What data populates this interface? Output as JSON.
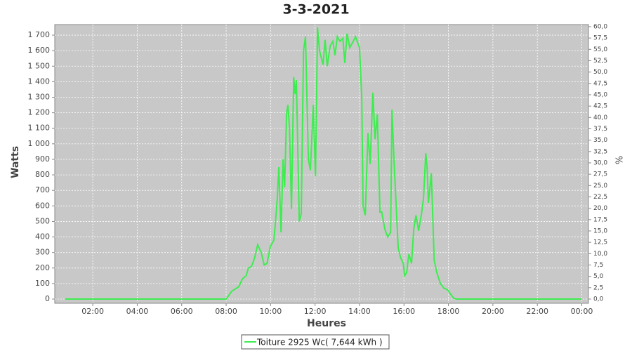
{
  "chart_data": {
    "type": "line",
    "title": "3-3-2021",
    "x_label": "Heures",
    "y_label": "Watts",
    "y2_label": "%",
    "x": [
      0.75,
      8.0,
      8.1,
      8.25,
      8.57,
      8.73,
      8.9,
      9.0,
      9.14,
      9.27,
      9.42,
      9.58,
      9.71,
      9.84,
      9.99,
      10.15,
      10.25,
      10.3,
      10.37,
      10.47,
      10.56,
      10.63,
      10.72,
      10.78,
      10.85,
      10.94,
      11.04,
      11.1,
      11.16,
      11.29,
      11.38,
      11.48,
      11.57,
      11.7,
      11.79,
      11.92,
      12.02,
      12.11,
      12.2,
      12.36,
      12.45,
      12.55,
      12.68,
      12.8,
      12.9,
      13.0,
      13.12,
      13.25,
      13.34,
      13.44,
      13.56,
      13.72,
      13.82,
      14.0,
      14.1,
      14.16,
      14.26,
      14.38,
      14.48,
      14.6,
      14.7,
      14.8,
      14.92,
      15.0,
      15.14,
      15.27,
      15.4,
      15.46,
      15.55,
      15.65,
      15.74,
      15.84,
      15.97,
      16.03,
      16.12,
      16.22,
      16.34,
      16.44,
      16.54,
      16.66,
      16.79,
      16.88,
      16.98,
      17.04,
      17.1,
      17.23,
      17.36,
      17.48,
      17.64,
      17.8,
      17.96,
      18.11,
      18.24,
      18.37,
      24.0
    ],
    "series": [
      {
        "name": "Toiture 2925 Wc( 7,644 kWh )",
        "color": "#3ded4f",
        "values": [
          0,
          0,
          20,
          50,
          80,
          130,
          150,
          200,
          210,
          260,
          350,
          300,
          220,
          230,
          340,
          380,
          550,
          650,
          850,
          430,
          900,
          720,
          1200,
          1250,
          1100,
          580,
          1430,
          1320,
          1410,
          500,
          550,
          1600,
          1690,
          900,
          830,
          1250,
          790,
          1750,
          1600,
          1510,
          1670,
          1500,
          1630,
          1660,
          1570,
          1690,
          1660,
          1680,
          1520,
          1710,
          1620,
          1660,
          1690,
          1620,
          1300,
          600,
          540,
          1070,
          870,
          1330,
          1030,
          1190,
          560,
          560,
          450,
          400,
          430,
          1220,
          900,
          600,
          330,
          270,
          230,
          150,
          170,
          290,
          230,
          450,
          540,
          440,
          550,
          650,
          940,
          850,
          620,
          810,
          250,
          170,
          100,
          70,
          60,
          30,
          5,
          0,
          0
        ]
      }
    ],
    "xlim": [
      0.29,
      24.3
    ],
    "xticks": [
      {
        "value": 2,
        "label": "02:00"
      },
      {
        "value": 4,
        "label": "04:00"
      },
      {
        "value": 6,
        "label": "06:00"
      },
      {
        "value": 8,
        "label": "08:00"
      },
      {
        "value": 10,
        "label": "10:00"
      },
      {
        "value": 12,
        "label": "12:00"
      },
      {
        "value": 14,
        "label": "14:00"
      },
      {
        "value": 16,
        "label": "16:00"
      },
      {
        "value": 18,
        "label": "18:00"
      },
      {
        "value": 20,
        "label": "20:00"
      },
      {
        "value": 22,
        "label": "22:00"
      },
      {
        "value": 24,
        "label": "00:00"
      }
    ],
    "ylim": [
      -27,
      1768
    ],
    "yticks": [
      0,
      100,
      200,
      300,
      400,
      500,
      600,
      700,
      800,
      900,
      {
        "value": 1000,
        "label": "1 000"
      },
      {
        "value": 1100,
        "label": "1 100"
      },
      {
        "value": 1200,
        "label": "1 200"
      },
      {
        "value": 1300,
        "label": "1 300"
      },
      {
        "value": 1400,
        "label": "1 400"
      },
      {
        "value": 1500,
        "label": "1 500"
      },
      {
        "value": 1600,
        "label": "1 600"
      },
      {
        "value": 1700,
        "label": "1 700"
      }
    ],
    "y2lim": [
      -0.93,
      60.46
    ],
    "y2ticks": [
      {
        "value": 0,
        "label": "0,0"
      },
      {
        "value": 2.5,
        "label": "2,5"
      },
      {
        "value": 5,
        "label": "5,0"
      },
      {
        "value": 7.5,
        "label": "7,5"
      },
      {
        "value": 10,
        "label": "10,0"
      },
      {
        "value": 12.5,
        "label": "12,5"
      },
      {
        "value": 15,
        "label": "15,0"
      },
      {
        "value": 17.5,
        "label": "17,5"
      },
      {
        "value": 20,
        "label": "20,0"
      },
      {
        "value": 22.5,
        "label": "22,5"
      },
      {
        "value": 25,
        "label": "25,0"
      },
      {
        "value": 27.5,
        "label": "27,5"
      },
      {
        "value": 30,
        "label": "30,0"
      },
      {
        "value": 32.5,
        "label": "32,5"
      },
      {
        "value": 35,
        "label": "35,0"
      },
      {
        "value": 37.5,
        "label": "37,5"
      },
      {
        "value": 40,
        "label": "40,0"
      },
      {
        "value": 42.5,
        "label": "42,5"
      },
      {
        "value": 45,
        "label": "45,0"
      },
      {
        "value": 47.5,
        "label": "47,5"
      },
      {
        "value": 50,
        "label": "50,0"
      },
      {
        "value": 52.5,
        "label": "52,5"
      },
      {
        "value": 55,
        "label": "55,0"
      },
      {
        "value": 57.5,
        "label": "57,5"
      },
      {
        "value": 60,
        "label": "60,0"
      }
    ],
    "grid": true,
    "background": "#c8c8c8",
    "legend": "bottom"
  }
}
